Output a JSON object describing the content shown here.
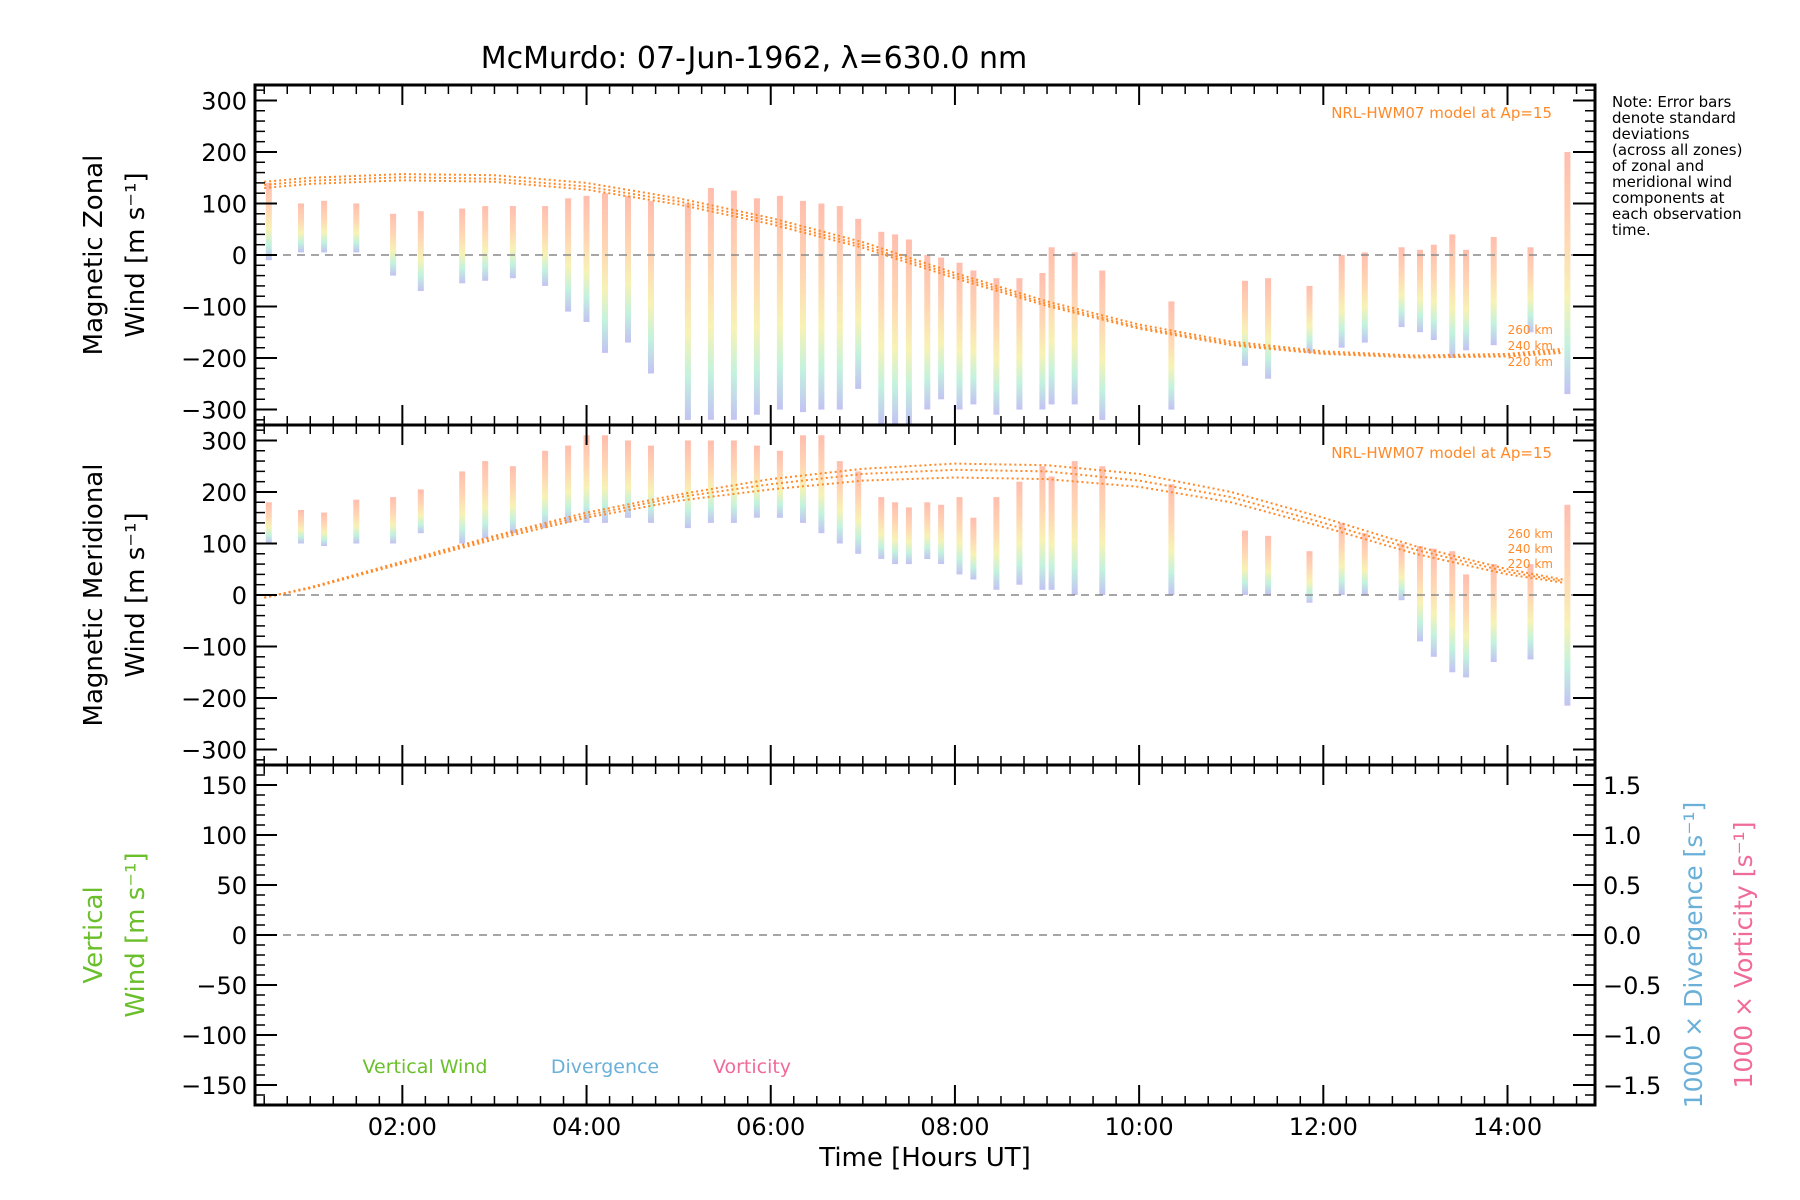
{
  "title": "McMurdo: 07-Jun-1962, λ=630.0 nm",
  "note_lines": [
    "Note: Error bars",
    "denote standard",
    "deviations",
    "(across all zones)",
    "of zonal and",
    "meridional wind",
    "components at",
    "each observation",
    "time."
  ],
  "colors": {
    "model": "#ff8a2a",
    "vertical": "#6abf2a",
    "divergence": "#6ab0d8",
    "vorticity": "#f06a9a",
    "zero_line": "#888888"
  },
  "chart_data": [
    {
      "type": "scatter",
      "panel": "zonal",
      "ylabel_lines": [
        "Magnetic Zonal",
        "Wind [m s⁻¹]"
      ],
      "ylim": [
        -330,
        330
      ],
      "yticks": [
        300,
        200,
        100,
        0,
        -100,
        -200,
        -300
      ],
      "ytick_labels": [
        "300",
        "200",
        "100",
        "0",
        "−100",
        "−200",
        "−300"
      ],
      "model_label": "NRL-HWM07 model at Ap=15",
      "altitude_labels": [
        "260 km",
        "240 km",
        "220 km"
      ],
      "model_curves": [
        {
          "altitude": "260 km",
          "x": [
            0.5,
            1,
            2,
            3,
            4,
            5,
            6,
            7,
            8,
            9,
            10,
            11,
            12,
            13,
            14,
            14.6
          ],
          "y": [
            142,
            150,
            157,
            155,
            140,
            110,
            72,
            25,
            -35,
            -90,
            -135,
            -168,
            -187,
            -195,
            -192,
            -182
          ]
        },
        {
          "altitude": "240 km",
          "x": [
            0.5,
            1,
            2,
            3,
            4,
            5,
            6,
            7,
            8,
            9,
            10,
            11,
            12,
            13,
            14,
            14.6
          ],
          "y": [
            136,
            144,
            151,
            148,
            133,
            104,
            66,
            19,
            -40,
            -95,
            -140,
            -172,
            -190,
            -197,
            -195,
            -186
          ]
        },
        {
          "altitude": "220 km",
          "x": [
            0.5,
            1,
            2,
            3,
            4,
            5,
            6,
            7,
            8,
            9,
            10,
            11,
            12,
            13,
            14,
            14.6
          ],
          "y": [
            130,
            138,
            145,
            142,
            127,
            98,
            60,
            14,
            -45,
            -99,
            -143,
            -175,
            -192,
            -199,
            -197,
            -190
          ]
        }
      ],
      "observations": [
        {
          "x": 0.55,
          "min": -10,
          "max": 140
        },
        {
          "x": 0.9,
          "min": 5,
          "max": 100
        },
        {
          "x": 1.15,
          "min": 5,
          "max": 105
        },
        {
          "x": 1.5,
          "min": 5,
          "max": 100
        },
        {
          "x": 1.9,
          "min": -40,
          "max": 80
        },
        {
          "x": 2.2,
          "min": -70,
          "max": 85
        },
        {
          "x": 2.65,
          "min": -55,
          "max": 90
        },
        {
          "x": 2.9,
          "min": -50,
          "max": 95
        },
        {
          "x": 3.2,
          "min": -45,
          "max": 95
        },
        {
          "x": 3.55,
          "min": -60,
          "max": 95
        },
        {
          "x": 3.8,
          "min": -110,
          "max": 110
        },
        {
          "x": 4.0,
          "min": -130,
          "max": 115
        },
        {
          "x": 4.2,
          "min": -190,
          "max": 120
        },
        {
          "x": 4.45,
          "min": -170,
          "max": 115
        },
        {
          "x": 4.7,
          "min": -230,
          "max": 105
        },
        {
          "x": 5.1,
          "min": -320,
          "max": 100
        },
        {
          "x": 5.35,
          "min": -320,
          "max": 130
        },
        {
          "x": 5.6,
          "min": -320,
          "max": 125
        },
        {
          "x": 5.85,
          "min": -310,
          "max": 110
        },
        {
          "x": 6.1,
          "min": -300,
          "max": 115
        },
        {
          "x": 6.35,
          "min": -305,
          "max": 105
        },
        {
          "x": 6.55,
          "min": -300,
          "max": 100
        },
        {
          "x": 6.75,
          "min": -300,
          "max": 95
        },
        {
          "x": 6.95,
          "min": -260,
          "max": 70
        },
        {
          "x": 7.2,
          "min": -330,
          "max": 45
        },
        {
          "x": 7.35,
          "min": -330,
          "max": 40
        },
        {
          "x": 7.5,
          "min": -330,
          "max": 30
        },
        {
          "x": 7.7,
          "min": -300,
          "max": 0
        },
        {
          "x": 7.85,
          "min": -280,
          "max": -5
        },
        {
          "x": 8.05,
          "min": -300,
          "max": -15
        },
        {
          "x": 8.2,
          "min": -290,
          "max": -30
        },
        {
          "x": 8.45,
          "min": -310,
          "max": -45
        },
        {
          "x": 8.7,
          "min": -300,
          "max": -45
        },
        {
          "x": 8.95,
          "min": -300,
          "max": -35
        },
        {
          "x": 9.05,
          "min": -290,
          "max": 15
        },
        {
          "x": 9.3,
          "min": -290,
          "max": 5
        },
        {
          "x": 9.6,
          "min": -320,
          "max": -30
        },
        {
          "x": 10.35,
          "min": -300,
          "max": -90
        },
        {
          "x": 11.15,
          "min": -215,
          "max": -50
        },
        {
          "x": 11.4,
          "min": -240,
          "max": -45
        },
        {
          "x": 11.85,
          "min": -190,
          "max": -60
        },
        {
          "x": 12.2,
          "min": -180,
          "max": 0
        },
        {
          "x": 12.45,
          "min": -170,
          "max": 5
        },
        {
          "x": 12.85,
          "min": -140,
          "max": 15
        },
        {
          "x": 13.05,
          "min": -150,
          "max": 10
        },
        {
          "x": 13.2,
          "min": -165,
          "max": 20
        },
        {
          "x": 13.4,
          "min": -200,
          "max": 40
        },
        {
          "x": 13.55,
          "min": -185,
          "max": 10
        },
        {
          "x": 13.85,
          "min": -175,
          "max": 35
        },
        {
          "x": 14.25,
          "min": -150,
          "max": 15
        },
        {
          "x": 14.65,
          "min": -270,
          "max": 200
        }
      ]
    },
    {
      "type": "scatter",
      "panel": "meridional",
      "ylabel_lines": [
        "Magnetic Meridional",
        "Wind [m s⁻¹]"
      ],
      "ylim": [
        -330,
        330
      ],
      "yticks": [
        300,
        200,
        100,
        0,
        -100,
        -200,
        -300
      ],
      "ytick_labels": [
        "300",
        "200",
        "100",
        "0",
        "−100",
        "−200",
        "−300"
      ],
      "model_label": "NRL-HWM07 model at Ap=15",
      "altitude_labels": [
        "260 km",
        "240 km",
        "220 km"
      ],
      "model_curves": [
        {
          "altitude": "260 km",
          "x": [
            0.5,
            1,
            2,
            3,
            4,
            5,
            6,
            7,
            8,
            9,
            10,
            11,
            12,
            13,
            14,
            14.6
          ],
          "y": [
            -5,
            15,
            65,
            115,
            160,
            195,
            225,
            245,
            255,
            252,
            235,
            200,
            150,
            95,
            50,
            30
          ]
        },
        {
          "altitude": "240 km",
          "x": [
            0.5,
            1,
            2,
            3,
            4,
            5,
            6,
            7,
            8,
            9,
            10,
            11,
            12,
            13,
            14,
            14.6
          ],
          "y": [
            -5,
            14,
            63,
            112,
            155,
            190,
            215,
            235,
            243,
            240,
            222,
            190,
            140,
            88,
            45,
            27
          ]
        },
        {
          "altitude": "220 km",
          "x": [
            0.5,
            1,
            2,
            3,
            4,
            5,
            6,
            7,
            8,
            9,
            10,
            11,
            12,
            13,
            14,
            14.6
          ],
          "y": [
            -5,
            13,
            61,
            108,
            150,
            183,
            205,
            222,
            228,
            225,
            210,
            180,
            132,
            80,
            40,
            24
          ]
        }
      ],
      "observations": [
        {
          "x": 0.55,
          "min": 100,
          "max": 180
        },
        {
          "x": 0.9,
          "min": 100,
          "max": 165
        },
        {
          "x": 1.15,
          "min": 95,
          "max": 160
        },
        {
          "x": 1.5,
          "min": 100,
          "max": 185
        },
        {
          "x": 1.9,
          "min": 100,
          "max": 190
        },
        {
          "x": 2.2,
          "min": 120,
          "max": 205
        },
        {
          "x": 2.65,
          "min": 100,
          "max": 240
        },
        {
          "x": 2.9,
          "min": 110,
          "max": 260
        },
        {
          "x": 3.2,
          "min": 120,
          "max": 250
        },
        {
          "x": 3.55,
          "min": 130,
          "max": 280
        },
        {
          "x": 3.8,
          "min": 140,
          "max": 290
        },
        {
          "x": 4.0,
          "min": 140,
          "max": 310
        },
        {
          "x": 4.2,
          "min": 140,
          "max": 310
        },
        {
          "x": 4.45,
          "min": 150,
          "max": 300
        },
        {
          "x": 4.7,
          "min": 140,
          "max": 290
        },
        {
          "x": 5.1,
          "min": 130,
          "max": 300
        },
        {
          "x": 5.35,
          "min": 140,
          "max": 300
        },
        {
          "x": 5.6,
          "min": 140,
          "max": 300
        },
        {
          "x": 5.85,
          "min": 150,
          "max": 290
        },
        {
          "x": 6.1,
          "min": 150,
          "max": 280
        },
        {
          "x": 6.35,
          "min": 140,
          "max": 310
        },
        {
          "x": 6.55,
          "min": 120,
          "max": 310
        },
        {
          "x": 6.75,
          "min": 100,
          "max": 260
        },
        {
          "x": 6.95,
          "min": 80,
          "max": 240
        },
        {
          "x": 7.2,
          "min": 70,
          "max": 190
        },
        {
          "x": 7.35,
          "min": 60,
          "max": 180
        },
        {
          "x": 7.5,
          "min": 60,
          "max": 170
        },
        {
          "x": 7.7,
          "min": 70,
          "max": 180
        },
        {
          "x": 7.85,
          "min": 60,
          "max": 175
        },
        {
          "x": 8.05,
          "min": 40,
          "max": 190
        },
        {
          "x": 8.2,
          "min": 30,
          "max": 150
        },
        {
          "x": 8.45,
          "min": 10,
          "max": 190
        },
        {
          "x": 8.7,
          "min": 20,
          "max": 220
        },
        {
          "x": 8.95,
          "min": 10,
          "max": 250
        },
        {
          "x": 9.05,
          "min": 10,
          "max": 230
        },
        {
          "x": 9.3,
          "min": 0,
          "max": 260
        },
        {
          "x": 9.6,
          "min": 0,
          "max": 250
        },
        {
          "x": 10.35,
          "min": 0,
          "max": 215
        },
        {
          "x": 11.15,
          "min": 0,
          "max": 125
        },
        {
          "x": 11.4,
          "min": 0,
          "max": 115
        },
        {
          "x": 11.85,
          "min": -15,
          "max": 85
        },
        {
          "x": 12.2,
          "min": 0,
          "max": 140
        },
        {
          "x": 12.45,
          "min": 0,
          "max": 120
        },
        {
          "x": 12.85,
          "min": -10,
          "max": 100
        },
        {
          "x": 13.05,
          "min": -90,
          "max": 95
        },
        {
          "x": 13.2,
          "min": -120,
          "max": 90
        },
        {
          "x": 13.4,
          "min": -150,
          "max": 85
        },
        {
          "x": 13.55,
          "min": -160,
          "max": 40
        },
        {
          "x": 13.85,
          "min": -130,
          "max": 60
        },
        {
          "x": 14.25,
          "min": -125,
          "max": 60
        },
        {
          "x": 14.65,
          "min": -215,
          "max": 175
        }
      ]
    },
    {
      "type": "line",
      "panel": "vertical",
      "ylabel_lines": [
        "Vertical",
        "Wind [m s⁻¹]"
      ],
      "ylim": [
        -170,
        170
      ],
      "yticks": [
        150,
        100,
        50,
        0,
        -50,
        -100,
        -150
      ],
      "ytick_labels": [
        "150",
        "100",
        "50",
        "0",
        "−50",
        "−100",
        "−150"
      ],
      "y2lim": [
        -1.7,
        1.7
      ],
      "y2ticks": [
        1.5,
        1.0,
        0.5,
        0.0,
        -0.5,
        -1.0,
        -1.5
      ],
      "y2tick_labels": [
        "1.5",
        "1.0",
        "0.5",
        "0.0",
        "−0.5",
        "−1.0",
        "−1.5"
      ],
      "y2label_divergence": "1000 × Divergence [s⁻¹]",
      "y2label_vorticity": "1000 × Vorticity [s⁻¹]",
      "legend": [
        "Vertical Wind",
        "Divergence",
        "Vorticity"
      ],
      "series": []
    }
  ],
  "xaxis": {
    "xlim": [
      0.4,
      14.95
    ],
    "xticks": [
      2,
      4,
      6,
      8,
      10,
      12,
      14
    ],
    "xtick_labels": [
      "02:00",
      "04:00",
      "06:00",
      "08:00",
      "10:00",
      "12:00",
      "14:00"
    ],
    "xlabel": "Time [Hours UT]"
  }
}
